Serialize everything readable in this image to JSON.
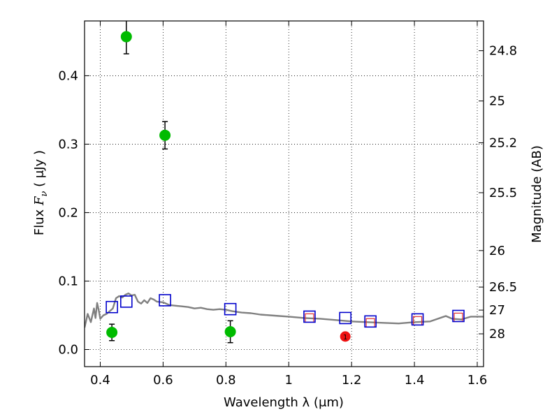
{
  "chart_data": {
    "type": "scatter",
    "title": "",
    "xlabel": "Wavelength  λ (μm)",
    "ylabel": "Flux  F_ν  ( μJy )",
    "ylabel_parts": {
      "prefix": "Flux  ",
      "symbol": "F",
      "subscript": "ν",
      "unit": "  ( μJy )"
    },
    "y2label": "Magnitude (AB)",
    "xlim": [
      0.35,
      1.62
    ],
    "ylim": [
      -0.025,
      0.48
    ],
    "grid": true,
    "xticks": [
      0.4,
      0.6,
      0.8,
      1.0,
      1.2,
      1.4,
      1.6
    ],
    "xtick_labels": [
      "0.4",
      "0.6",
      "0.8",
      "1",
      "1.2",
      "1.4",
      "1.6"
    ],
    "yticks": [
      0.0,
      0.1,
      0.2,
      0.3,
      0.4
    ],
    "ytick_labels": [
      "0.0",
      "0.1",
      "0.2",
      "0.3",
      "0.4"
    ],
    "mag_ticks": [
      24.8,
      25,
      25.2,
      25.5,
      26,
      26.5,
      27,
      28
    ],
    "mag_tick_labels": [
      "24.8",
      "25",
      "25.2",
      "25.5",
      "26",
      "26.5",
      "27",
      "28"
    ],
    "colors": {
      "model": "#808080",
      "observed": "#00bb00",
      "model_boxes": "#0000cc",
      "nir_boxes": "#e03030",
      "detection": "#ee1111"
    },
    "model_spectrum": {
      "x": [
        0.35,
        0.36,
        0.37,
        0.38,
        0.385,
        0.39,
        0.395,
        0.4,
        0.41,
        0.42,
        0.43,
        0.44,
        0.45,
        0.46,
        0.47,
        0.48,
        0.49,
        0.5,
        0.51,
        0.52,
        0.53,
        0.54,
        0.55,
        0.56,
        0.57,
        0.58,
        0.6,
        0.62,
        0.64,
        0.66,
        0.68,
        0.7,
        0.72,
        0.74,
        0.76,
        0.78,
        0.8,
        0.82,
        0.85,
        0.88,
        0.91,
        0.94,
        0.97,
        1.0,
        1.05,
        1.1,
        1.15,
        1.2,
        1.25,
        1.3,
        1.35,
        1.4,
        1.45,
        1.5,
        1.52,
        1.55,
        1.58,
        1.62
      ],
      "y": [
        0.032,
        0.052,
        0.04,
        0.06,
        0.046,
        0.068,
        0.058,
        0.045,
        0.05,
        0.052,
        0.056,
        0.06,
        0.075,
        0.078,
        0.076,
        0.08,
        0.082,
        0.079,
        0.08,
        0.07,
        0.067,
        0.072,
        0.068,
        0.075,
        0.073,
        0.07,
        0.069,
        0.065,
        0.064,
        0.063,
        0.062,
        0.06,
        0.061,
        0.059,
        0.058,
        0.059,
        0.058,
        0.056,
        0.054,
        0.053,
        0.051,
        0.05,
        0.049,
        0.048,
        0.046,
        0.045,
        0.043,
        0.041,
        0.04,
        0.039,
        0.038,
        0.04,
        0.041,
        0.049,
        0.045,
        0.044,
        0.048,
        0.048
      ]
    },
    "series": [
      {
        "marker": "circle-filled",
        "x": [
          0.437,
          0.483,
          0.606,
          0.814
        ],
        "y": [
          0.025,
          0.457,
          0.313,
          0.026
        ],
        "yerr": [
          0.012,
          0.025,
          0.02,
          0.016
        ]
      },
      {
        "marker": "square-open",
        "x": [
          0.437,
          0.483,
          0.606,
          0.814,
          1.066,
          1.18,
          1.26,
          1.41,
          1.54
        ],
        "y": [
          0.062,
          0.07,
          0.072,
          0.059,
          0.048,
          0.046,
          0.041,
          0.044,
          0.049
        ]
      },
      {
        "marker": "square-small",
        "x": [
          1.066,
          1.26,
          1.41,
          1.54
        ],
        "y": [
          0.046,
          0.039,
          0.042,
          0.047
        ]
      },
      {
        "marker": "circle-labeled",
        "x": [
          1.18
        ],
        "y": [
          0.019
        ],
        "labels": [
          "1"
        ]
      }
    ]
  }
}
